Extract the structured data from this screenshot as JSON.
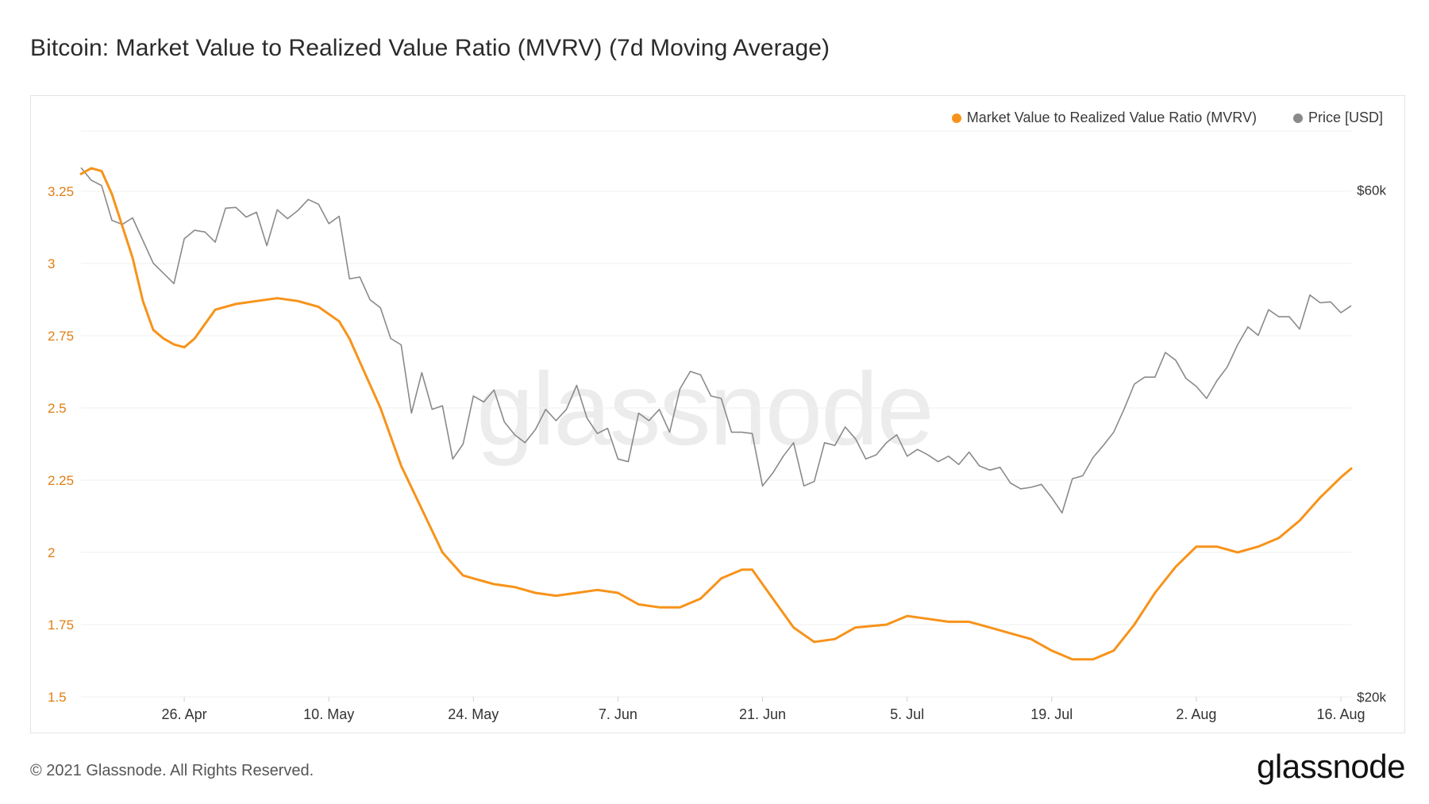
{
  "title": "Bitcoin: Market Value to Realized Value Ratio (MVRV) (7d Moving Average)",
  "watermark": "glassnode",
  "footer": {
    "copyright": "© 2021 Glassnode. All Rights Reserved.",
    "logo": "glassnode"
  },
  "colors": {
    "mvrv": "#f7931a",
    "price": "#8a8a8a",
    "left_axis": "#e07e14",
    "grid": "#efefef"
  },
  "chart_data": {
    "type": "line",
    "legend": [
      "Market Value to Realized Value Ratio (MVRV)",
      "Price [USD]"
    ],
    "legend_position": "top-right",
    "x_tick_labels": [
      "26. Apr",
      "10. May",
      "24. May",
      "7. Jun",
      "21. Jun",
      "5. Jul",
      "19. Jul",
      "2. Aug",
      "16. Aug"
    ],
    "x_tick_dates": [
      "2021-04-26",
      "2021-05-10",
      "2021-05-24",
      "2021-06-07",
      "2021-06-21",
      "2021-07-05",
      "2021-07-19",
      "2021-08-02",
      "2021-08-16"
    ],
    "x_range": [
      "2021-04-16",
      "2021-08-17"
    ],
    "left_axis": {
      "ticks": [
        "1.5",
        "1.75",
        "2",
        "2.25",
        "2.5",
        "2.75",
        "3",
        "3.25"
      ],
      "ylim": [
        1.5,
        3.5
      ]
    },
    "right_axis": {
      "ticks": [
        "$20k",
        "$60k"
      ],
      "tick_values": [
        20000,
        60000
      ],
      "scale": "log",
      "ylim": [
        20000,
        70000
      ]
    },
    "grid": true,
    "series": [
      {
        "name": "Market Value to Realized Value Ratio (MVRV)",
        "axis": "left",
        "x": [
          "2021-04-16",
          "2021-04-17",
          "2021-04-18",
          "2021-04-19",
          "2021-04-21",
          "2021-04-22",
          "2021-04-23",
          "2021-04-24",
          "2021-04-25",
          "2021-04-26",
          "2021-04-27",
          "2021-04-28",
          "2021-04-29",
          "2021-05-01",
          "2021-05-03",
          "2021-05-05",
          "2021-05-07",
          "2021-05-09",
          "2021-05-11",
          "2021-05-12",
          "2021-05-13",
          "2021-05-15",
          "2021-05-17",
          "2021-05-19",
          "2021-05-21",
          "2021-05-23",
          "2021-05-24",
          "2021-05-26",
          "2021-05-28",
          "2021-05-30",
          "2021-06-01",
          "2021-06-03",
          "2021-06-05",
          "2021-06-07",
          "2021-06-09",
          "2021-06-11",
          "2021-06-13",
          "2021-06-15",
          "2021-06-17",
          "2021-06-19",
          "2021-06-20",
          "2021-06-22",
          "2021-06-24",
          "2021-06-26",
          "2021-06-28",
          "2021-06-30",
          "2021-07-03",
          "2021-07-05",
          "2021-07-07",
          "2021-07-09",
          "2021-07-11",
          "2021-07-13",
          "2021-07-15",
          "2021-07-17",
          "2021-07-19",
          "2021-07-21",
          "2021-07-23",
          "2021-07-25",
          "2021-07-27",
          "2021-07-29",
          "2021-07-31",
          "2021-08-02",
          "2021-08-04",
          "2021-08-06",
          "2021-08-08",
          "2021-08-10",
          "2021-08-12",
          "2021-08-14",
          "2021-08-16",
          "2021-08-17"
        ],
        "values": [
          3.31,
          3.33,
          3.32,
          3.24,
          3.02,
          2.87,
          2.77,
          2.74,
          2.72,
          2.71,
          2.74,
          2.79,
          2.84,
          2.86,
          2.87,
          2.88,
          2.87,
          2.85,
          2.8,
          2.74,
          2.66,
          2.5,
          2.3,
          2.15,
          2.0,
          1.92,
          1.91,
          1.89,
          1.88,
          1.86,
          1.85,
          1.86,
          1.87,
          1.86,
          1.82,
          1.81,
          1.81,
          1.84,
          1.91,
          1.94,
          1.94,
          1.84,
          1.74,
          1.69,
          1.7,
          1.74,
          1.75,
          1.78,
          1.77,
          1.76,
          1.76,
          1.74,
          1.72,
          1.7,
          1.66,
          1.63,
          1.63,
          1.66,
          1.75,
          1.86,
          1.95,
          2.02,
          2.02,
          2.0,
          2.02,
          2.05,
          2.11,
          2.19,
          2.26,
          2.29
        ]
      },
      {
        "name": "Price [USD]",
        "axis": "right",
        "x": [
          "2021-04-16",
          "2021-04-17",
          "2021-04-18",
          "2021-04-19",
          "2021-04-20",
          "2021-04-21",
          "2021-04-22",
          "2021-04-23",
          "2021-04-24",
          "2021-04-25",
          "2021-04-26",
          "2021-04-27",
          "2021-04-28",
          "2021-04-29",
          "2021-04-30",
          "2021-05-01",
          "2021-05-02",
          "2021-05-03",
          "2021-05-04",
          "2021-05-05",
          "2021-05-06",
          "2021-05-07",
          "2021-05-08",
          "2021-05-09",
          "2021-05-10",
          "2021-05-11",
          "2021-05-12",
          "2021-05-13",
          "2021-05-14",
          "2021-05-15",
          "2021-05-16",
          "2021-05-17",
          "2021-05-18",
          "2021-05-19",
          "2021-05-20",
          "2021-05-21",
          "2021-05-22",
          "2021-05-23",
          "2021-05-24",
          "2021-05-25",
          "2021-05-26",
          "2021-05-27",
          "2021-05-28",
          "2021-05-29",
          "2021-05-30",
          "2021-05-31",
          "2021-06-01",
          "2021-06-02",
          "2021-06-03",
          "2021-06-04",
          "2021-06-05",
          "2021-06-06",
          "2021-06-07",
          "2021-06-08",
          "2021-06-09",
          "2021-06-10",
          "2021-06-11",
          "2021-06-12",
          "2021-06-13",
          "2021-06-14",
          "2021-06-15",
          "2021-06-16",
          "2021-06-17",
          "2021-06-18",
          "2021-06-19",
          "2021-06-20",
          "2021-06-21",
          "2021-06-22",
          "2021-06-23",
          "2021-06-24",
          "2021-06-25",
          "2021-06-26",
          "2021-06-27",
          "2021-06-28",
          "2021-06-29",
          "2021-06-30",
          "2021-07-01",
          "2021-07-02",
          "2021-07-03",
          "2021-07-04",
          "2021-07-05",
          "2021-07-06",
          "2021-07-07",
          "2021-07-08",
          "2021-07-09",
          "2021-07-10",
          "2021-07-11",
          "2021-07-12",
          "2021-07-13",
          "2021-07-14",
          "2021-07-15",
          "2021-07-16",
          "2021-07-17",
          "2021-07-18",
          "2021-07-19",
          "2021-07-20",
          "2021-07-21",
          "2021-07-22",
          "2021-07-23",
          "2021-07-24",
          "2021-07-25",
          "2021-07-26",
          "2021-07-27",
          "2021-07-28",
          "2021-07-29",
          "2021-07-30",
          "2021-07-31",
          "2021-08-01",
          "2021-08-02",
          "2021-08-03",
          "2021-08-04",
          "2021-08-05",
          "2021-08-06",
          "2021-08-07",
          "2021-08-08",
          "2021-08-09",
          "2021-08-10",
          "2021-08-11",
          "2021-08-12",
          "2021-08-13",
          "2021-08-14",
          "2021-08-15",
          "2021-08-16",
          "2021-08-17"
        ],
        "values": [
          63000,
          61300,
          60600,
          56200,
          55700,
          56500,
          53800,
          51200,
          50100,
          49000,
          54000,
          55000,
          54800,
          53600,
          57700,
          57800,
          56600,
          57200,
          53200,
          57500,
          56400,
          57400,
          58800,
          58200,
          55800,
          56700,
          49500,
          49700,
          47300,
          46500,
          43500,
          42900,
          37000,
          40400,
          37300,
          37600,
          33500,
          34600,
          38400,
          37900,
          38900,
          36300,
          35300,
          34700,
          35700,
          37300,
          36400,
          37300,
          39300,
          36600,
          35400,
          35800,
          33500,
          33300,
          37000,
          36400,
          37300,
          35500,
          39000,
          40500,
          40200,
          38400,
          38200,
          35500,
          35500,
          35400,
          31600,
          32500,
          33700,
          34700,
          31600,
          31900,
          34700,
          34500,
          35900,
          35000,
          33500,
          33800,
          34700,
          35300,
          33700,
          34200,
          33800,
          33300,
          33700,
          33100,
          34000,
          33000,
          32700,
          32900,
          31800,
          31400,
          31500,
          31700,
          30800,
          29800,
          32100,
          32300,
          33600,
          34500,
          35500,
          37300,
          39400,
          40000,
          40000,
          42200,
          41500,
          39900,
          39200,
          38200,
          39700,
          40900,
          42900,
          44600,
          43800,
          46300,
          45600,
          45600,
          44400,
          47800,
          47000,
          47100,
          46000,
          46700
        ]
      }
    ]
  }
}
